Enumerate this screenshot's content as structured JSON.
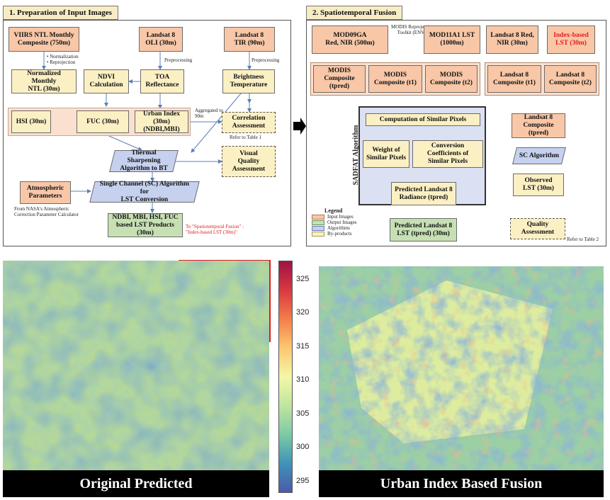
{
  "panel1": {
    "title": "1. Preparation of Input Images",
    "viirs": "VIIRS NTL Monthly\nComposite (750m)",
    "landsat_oli": "Landsat 8\nOLI (30m)",
    "landsat_tir": "Landsat 8\nTIR (90m)",
    "note_norm": "•  Normalization\n•  Reprojection",
    "note_pre1": "Preprocessing",
    "note_pre2": "Preprocessing",
    "norm_ntl": "Normalized Monthly\nNTL (30m)",
    "ndvi": "NDVI\nCalculation",
    "toa": "TOA\nReflectance",
    "bright": "Brightness\nTemperature",
    "hsi": "HSI (30m)",
    "fuc": "FUC (30m)",
    "urban": "Urban Index (30m)\n(NDBI,MBI)",
    "agg_note": "Aggregated to\n90m",
    "corr": "Correlation\nAssessment",
    "refer": "Refer to Table 1",
    "thermal": "Thermal Sharpening\nAlgorithm to BT",
    "visual": "Visual\nQuality\nAssessment",
    "atmo": "Atmospheric\nParameters",
    "atmo_note": "From NASA's Atmospheric\nCorrection Parameter Calculator",
    "sc": "Single Channel (SC) Algorithm for\nLST Conversion",
    "products": "NDBI, MBI, HSI, FUC\nbased LST Products (30m)",
    "to_fusion": "To \"Spatiotemporal Fusion\" :\n\"Index-based LST (30m)\""
  },
  "panel2": {
    "title": "2. Spatiotemporal Fusion",
    "mod09": "MOD09GA\nRed, NIR (500m)",
    "reproj": "MODIS Reprojection\nToolkit (ENVI)",
    "mod11": "MOD11A1 LST\n(1000m)",
    "l8red": "Landsat 8 Red,\nNIR (30m)",
    "index_lst": "Index-based\nLST (30m)",
    "modis1": "MODIS\nComposite (tpred)",
    "modis2": "MODIS\nComposite (t1)",
    "modis3": "MODIS\nComposite (t2)",
    "l8c1": "Landsat 8\nComposite (t1)",
    "l8c2": "Landsat 8\nComposite (t2)",
    "sadfat": "SADFAT Algorithm",
    "similar": "Computation of Similar Pixels",
    "weight": "Weight of\nSimilar Pixels",
    "conv": "Conversion Coefficients of\nSimilar Pixels",
    "radiance": "Predicted Landsat 8\nRadiance (tpred)",
    "l8pred": "Landsat 8\nComposite (tpred)",
    "sc_alg": "SC Algorithm",
    "observed": "Observed\nLST (30m)",
    "pred_lst": "Predicted Landsat 8\nLST (tpred) (30m)",
    "quality": "Quality\nAssessment",
    "refer2": "Refer to Table 2",
    "legend_title": "Legend",
    "legend": [
      "Input Images",
      "Output Images",
      "Algorithms",
      "By-products"
    ]
  },
  "colors": {
    "input": "#f8c7a7",
    "output": "#c6e0b4",
    "algorithm": "#c6d1ef",
    "byproduct": "#fbf0c4",
    "highlight_box": "#e31a1c"
  },
  "maps": {
    "left_caption": "Original Predicted",
    "right_caption": "Urban Index Based Fusion",
    "colorbar_ticks": [
      "325",
      "320",
      "315",
      "310",
      "305",
      "300",
      "295"
    ]
  }
}
